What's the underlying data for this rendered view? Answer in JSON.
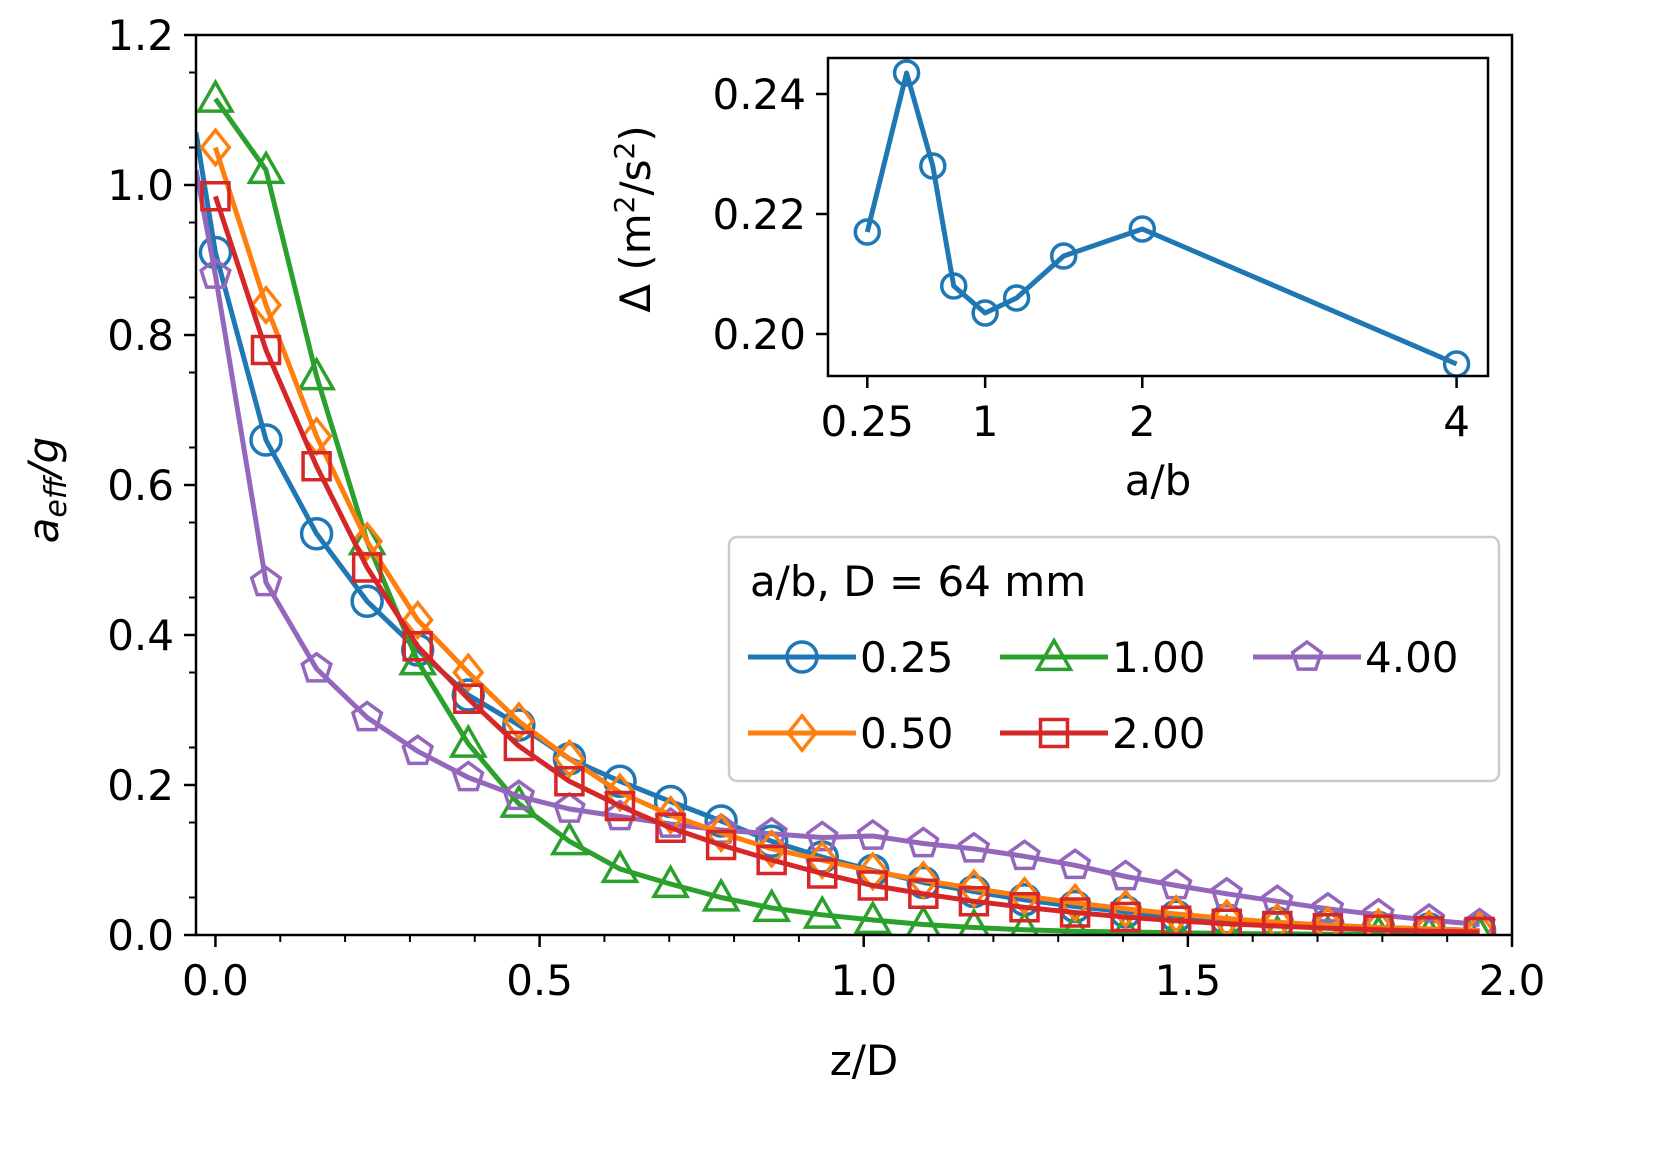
{
  "chart_data": [
    {
      "type": "line",
      "xlabel": "z/D",
      "ylabel_main": "a",
      "ylabel_sub": "eff",
      "ylabel_suffix": "/g",
      "xlim": [
        -0.03,
        2.0
      ],
      "ylim": [
        0.0,
        1.2
      ],
      "xticks": [
        0.0,
        0.5,
        1.0,
        1.5,
        2.0
      ],
      "xtick_labels": [
        "0.0",
        "0.5",
        "1.0",
        "1.5",
        "2.0"
      ],
      "yticks": [
        0.0,
        0.2,
        0.4,
        0.6,
        0.8,
        1.0,
        1.2
      ],
      "ytick_labels": [
        "0.0",
        "0.2",
        "0.4",
        "0.6",
        "0.8",
        "1.0",
        "1.2"
      ],
      "x": [
        0.0,
        0.078,
        0.156,
        0.234,
        0.312,
        0.39,
        0.468,
        0.546,
        0.624,
        0.702,
        0.78,
        0.858,
        0.936,
        1.014,
        1.092,
        1.17,
        1.248,
        1.326,
        1.404,
        1.482,
        1.56,
        1.638,
        1.716,
        1.794,
        1.872,
        1.95
      ],
      "legend_title": "a/b, D = 64 mm",
      "legend_position": "center-right",
      "series": [
        {
          "name": "0.25",
          "color": "#1f77b4",
          "marker": "circle",
          "y0": 1.07,
          "values": [
            0.91,
            0.66,
            0.535,
            0.445,
            0.38,
            0.32,
            0.28,
            0.235,
            0.205,
            0.178,
            0.152,
            0.125,
            0.104,
            0.086,
            0.07,
            0.058,
            0.047,
            0.038,
            0.031,
            0.025,
            0.02,
            0.016,
            0.013,
            0.01,
            0.008,
            0.006
          ]
        },
        {
          "name": "1.00",
          "color": "#2ca02c",
          "marker": "triangle",
          "values": [
            1.115,
            1.02,
            0.745,
            0.525,
            0.365,
            0.255,
            0.175,
            0.125,
            0.088,
            0.068,
            0.05,
            0.036,
            0.027,
            0.02,
            0.014,
            0.01,
            0.007,
            0.005,
            0.004,
            0.003,
            0.002,
            0.0015,
            0.001,
            0.001,
            0.0005,
            0.0005
          ]
        },
        {
          "name": "4.00",
          "color": "#9467bd",
          "marker": "pentagon",
          "y0": 1.02,
          "values": [
            0.88,
            0.47,
            0.355,
            0.29,
            0.245,
            0.21,
            0.185,
            0.168,
            0.158,
            0.148,
            0.14,
            0.135,
            0.13,
            0.132,
            0.122,
            0.115,
            0.105,
            0.093,
            0.078,
            0.066,
            0.055,
            0.045,
            0.035,
            0.027,
            0.02,
            0.014
          ]
        },
        {
          "name": "0.50",
          "color": "#ff7f0e",
          "marker": "diamond",
          "values": [
            1.05,
            0.84,
            0.665,
            0.525,
            0.42,
            0.35,
            0.285,
            0.235,
            0.19,
            0.16,
            0.136,
            0.115,
            0.1,
            0.085,
            0.073,
            0.062,
            0.052,
            0.043,
            0.035,
            0.028,
            0.022,
            0.017,
            0.013,
            0.01,
            0.008,
            0.006
          ]
        },
        {
          "name": "2.00",
          "color": "#d62728",
          "marker": "square",
          "values": [
            0.985,
            0.78,
            0.625,
            0.49,
            0.385,
            0.315,
            0.252,
            0.205,
            0.172,
            0.143,
            0.12,
            0.1,
            0.082,
            0.066,
            0.055,
            0.045,
            0.037,
            0.03,
            0.024,
            0.019,
            0.015,
            0.012,
            0.009,
            0.007,
            0.005,
            0.004
          ]
        }
      ]
    },
    {
      "type": "line",
      "inset": true,
      "xlabel": "a/b",
      "ylabel_prefix": "Δ (m",
      "ylabel_sup1": "2",
      "ylabel_mid": "/s",
      "ylabel_sup2": "2",
      "ylabel_suffix": ")",
      "xlim": [
        0.0,
        4.2
      ],
      "ylim": [
        0.193,
        0.246
      ],
      "xticks": [
        0.25,
        1,
        2,
        4
      ],
      "xtick_labels": [
        "0.25",
        "1",
        "2",
        "4"
      ],
      "yticks": [
        0.2,
        0.22,
        0.24
      ],
      "ytick_labels": [
        "0.20",
        "0.22",
        "0.24"
      ],
      "series": [
        {
          "name": "Δ",
          "color": "#1f77b4",
          "marker": "circle",
          "x": [
            0.25,
            0.5,
            0.667,
            0.8,
            1.0,
            1.2,
            1.5,
            2.0,
            4.0
          ],
          "values": [
            0.217,
            0.2435,
            0.228,
            0.208,
            0.2035,
            0.206,
            0.213,
            0.2175,
            0.195
          ]
        }
      ]
    }
  ]
}
